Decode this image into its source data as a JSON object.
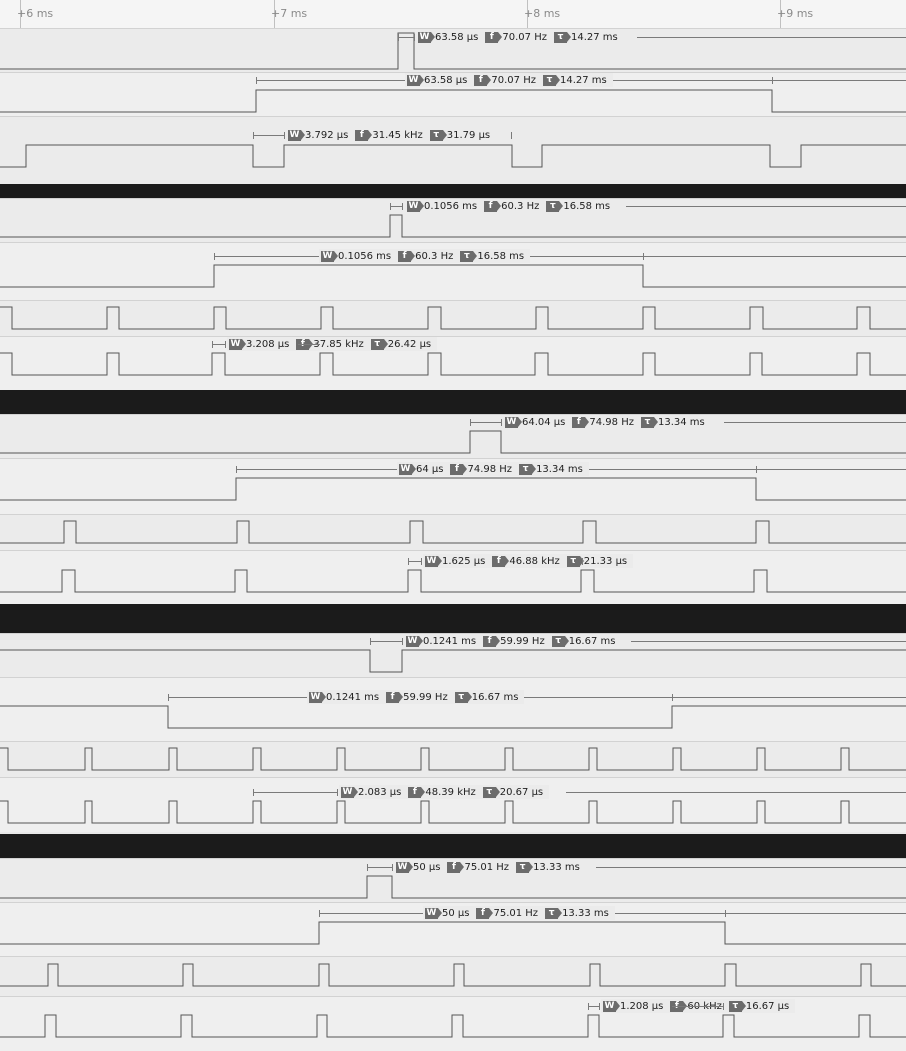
{
  "timeline": {
    "ticks": [
      "+6 ms",
      "+7 ms",
      "+8 ms",
      "+9 ms"
    ]
  },
  "groups": [
    {
      "channels": [
        {
          "measurement": {
            "width": "63.58 µs",
            "frequency": "70.07 Hz",
            "period": "14.27 ms"
          }
        },
        {
          "measurement": {
            "width": "63.58 µs",
            "frequency": "70.07 Hz",
            "period": "14.27 ms"
          }
        },
        {
          "measurement": {
            "width": "3.792 µs",
            "frequency": "31.45 kHz",
            "period": "31.79 µs"
          }
        }
      ]
    },
    {
      "channels": [
        {
          "measurement": {
            "width": "0.1056 ms",
            "frequency": "60.3 Hz",
            "period": "16.58 ms"
          }
        },
        {
          "measurement": {
            "width": "0.1056 ms",
            "frequency": "60.3 Hz",
            "period": "16.58 ms"
          }
        },
        {
          "measurement": null
        },
        {
          "measurement": {
            "width": "3.208 µs",
            "frequency": "37.85 kHz",
            "period": "26.42 µs"
          }
        }
      ]
    },
    {
      "channels": [
        {
          "measurement": {
            "width": "64.04 µs",
            "frequency": "74.98 Hz",
            "period": "13.34 ms"
          }
        },
        {
          "measurement": {
            "width": "64 µs",
            "frequency": "74.98 Hz",
            "period": "13.34 ms"
          }
        },
        {
          "measurement": null
        },
        {
          "measurement": {
            "width": "1.625 µs",
            "frequency": "46.88 kHz",
            "period": "21.33 µs"
          }
        }
      ]
    },
    {
      "channels": [
        {
          "measurement": {
            "width": "0.1241 ms",
            "frequency": "59.99 Hz",
            "period": "16.67 ms"
          }
        },
        {
          "measurement": {
            "width": "0.1241 ms",
            "frequency": "59.99 Hz",
            "period": "16.67 ms"
          }
        },
        {
          "measurement": null
        },
        {
          "measurement": {
            "width": "2.083 µs",
            "frequency": "48.39 kHz",
            "period": "20.67 µs"
          }
        }
      ]
    },
    {
      "channels": [
        {
          "measurement": {
            "width": "50 µs",
            "frequency": "75.01 Hz",
            "period": "13.33 ms"
          }
        },
        {
          "measurement": {
            "width": "50 µs",
            "frequency": "75.01 Hz",
            "period": "13.33 ms"
          }
        },
        {
          "measurement": null
        },
        {
          "measurement": {
            "width": "1.208 µs",
            "frequency": "60 kHz",
            "period": "16.67 µs"
          }
        }
      ]
    }
  ]
}
